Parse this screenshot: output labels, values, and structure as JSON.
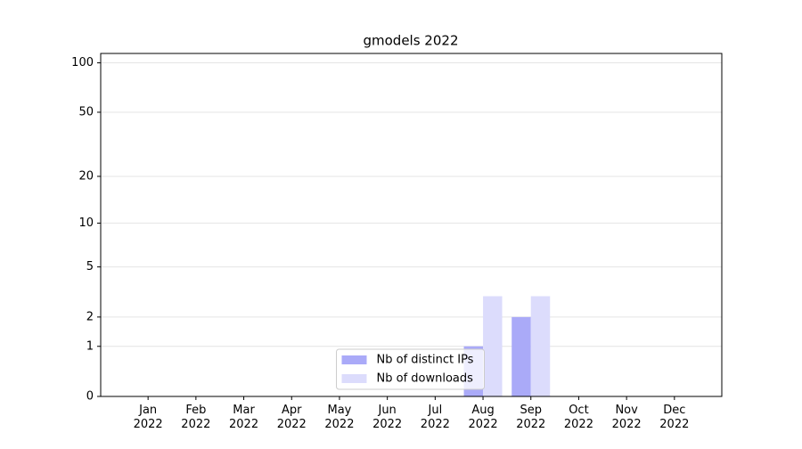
{
  "chart_data": {
    "type": "bar",
    "title": "gmodels 2022",
    "categories": [
      "Jan\n2022",
      "Feb\n2022",
      "Mar\n2022",
      "Apr\n2022",
      "May\n2022",
      "Jun\n2022",
      "Jul\n2022",
      "Aug\n2022",
      "Sep\n2022",
      "Oct\n2022",
      "Nov\n2022",
      "Dec\n2022"
    ],
    "series": [
      {
        "name": "Nb of distinct IPs",
        "color": "#aaaaf8",
        "values": [
          0,
          0,
          0,
          0,
          0,
          0,
          0,
          1,
          2,
          0,
          0,
          0
        ]
      },
      {
        "name": "Nb of downloads",
        "color": "#dcdcfc",
        "values": [
          0,
          0,
          0,
          0,
          0,
          0,
          0,
          3,
          3,
          0,
          0,
          0
        ]
      }
    ],
    "yscale": "log1p",
    "ylim": [
      0,
      114
    ],
    "yticks": [
      0,
      1,
      2,
      5,
      10,
      20,
      50,
      100
    ],
    "grid": true,
    "legend": "lower center"
  }
}
